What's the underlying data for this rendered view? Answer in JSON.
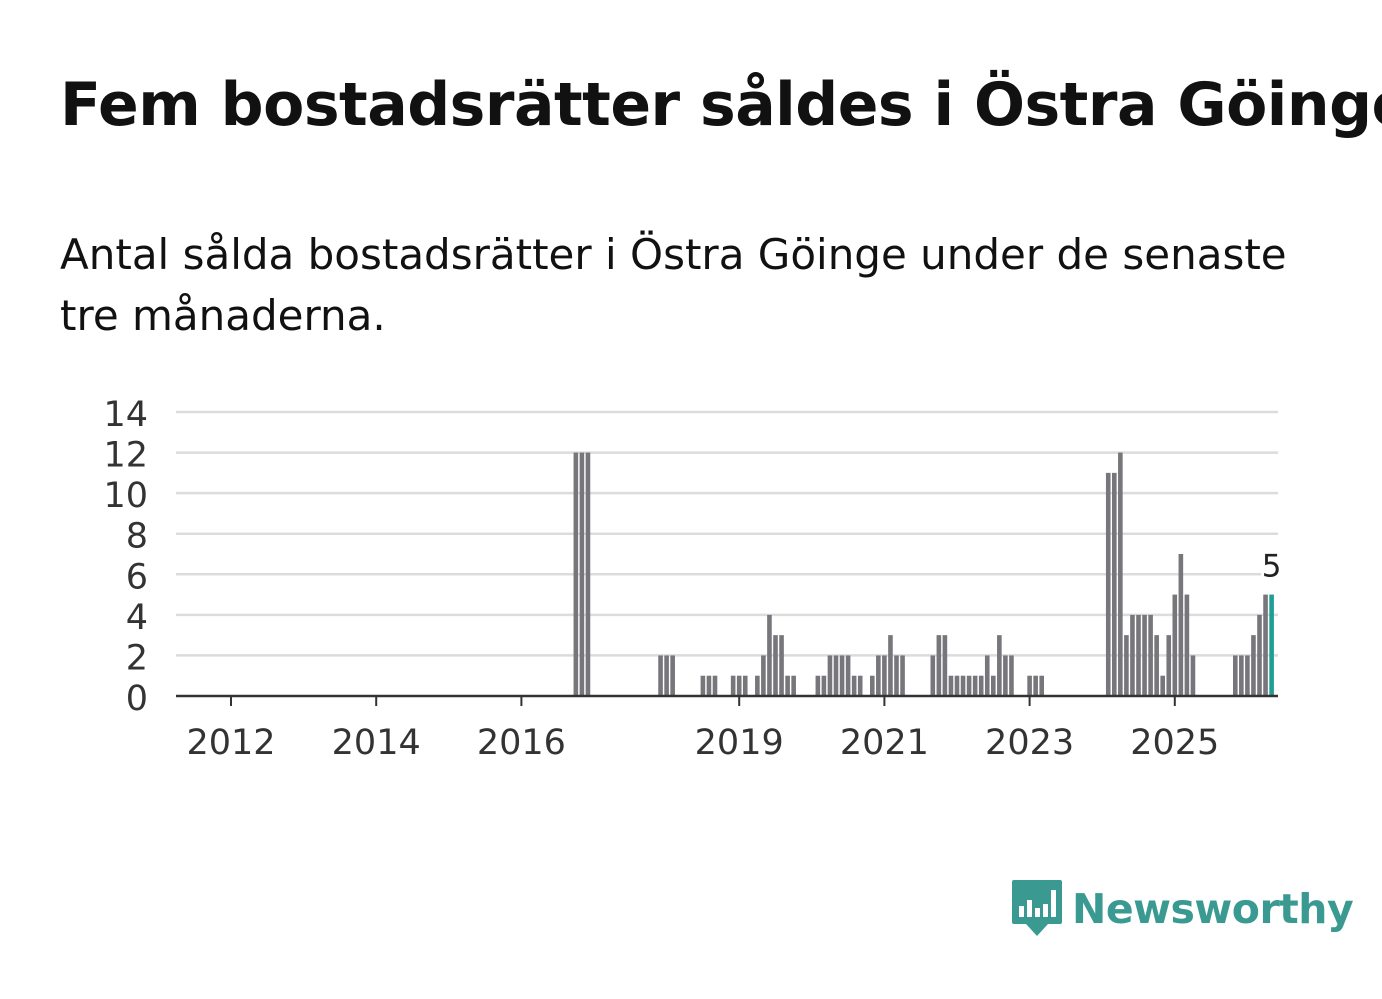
{
  "title": "Fem bostadsrätter såldes i Östra Göinge",
  "subtitle": "Antal sålda bostadsrätter i Östra Göinge under de senaste tre månaderna.",
  "brand": {
    "name": "Newsworthy",
    "color": "#3a9a92",
    "icon": "newsworthy-logo-icon"
  },
  "chart_data": {
    "type": "bar",
    "title": "",
    "xlabel": "",
    "ylabel": "",
    "ylim": [
      0,
      14
    ],
    "yticks": [
      0,
      2,
      4,
      6,
      8,
      10,
      12,
      14
    ],
    "xticks": [
      {
        "label": "2012",
        "index": 0
      },
      {
        "label": "2014",
        "index": 24
      },
      {
        "label": "2016",
        "index": 48
      },
      {
        "label": "2019",
        "index": 84
      },
      {
        "label": "2021",
        "index": 108
      },
      {
        "label": "2023",
        "index": 132
      },
      {
        "label": "2025",
        "index": 156
      }
    ],
    "start": "2012-01",
    "bar_color": "#77767b",
    "highlight_color": "#1f9e96",
    "highlight_label": "5",
    "values": [
      0,
      0,
      0,
      0,
      0,
      0,
      0,
      0,
      0,
      0,
      0,
      0,
      0,
      0,
      0,
      0,
      0,
      0,
      0,
      0,
      0,
      0,
      0,
      0,
      0,
      0,
      0,
      0,
      0,
      0,
      0,
      0,
      0,
      0,
      0,
      0,
      0,
      0,
      0,
      0,
      0,
      0,
      0,
      0,
      0,
      0,
      0,
      0,
      0,
      0,
      0,
      0,
      0,
      0,
      0,
      0,
      0,
      12,
      12,
      12,
      0,
      0,
      0,
      0,
      0,
      0,
      0,
      0,
      0,
      0,
      0,
      2,
      2,
      2,
      0,
      0,
      0,
      0,
      1,
      1,
      1,
      0,
      0,
      1,
      1,
      1,
      0,
      1,
      2,
      4,
      3,
      3,
      1,
      1,
      0,
      0,
      0,
      1,
      1,
      2,
      2,
      2,
      2,
      1,
      1,
      0,
      1,
      2,
      2,
      3,
      2,
      2,
      0,
      0,
      0,
      0,
      2,
      3,
      3,
      1,
      1,
      1,
      1,
      1,
      1,
      2,
      1,
      3,
      2,
      2,
      0,
      0,
      1,
      1,
      1,
      0,
      0,
      0,
      0,
      0,
      0,
      0,
      0,
      0,
      0,
      11,
      11,
      12,
      3,
      4,
      4,
      4,
      4,
      3,
      1,
      3,
      5,
      7,
      5,
      2,
      0,
      0,
      0,
      0,
      0,
      0,
      2,
      2,
      2,
      3,
      4,
      5,
      5
    ]
  }
}
